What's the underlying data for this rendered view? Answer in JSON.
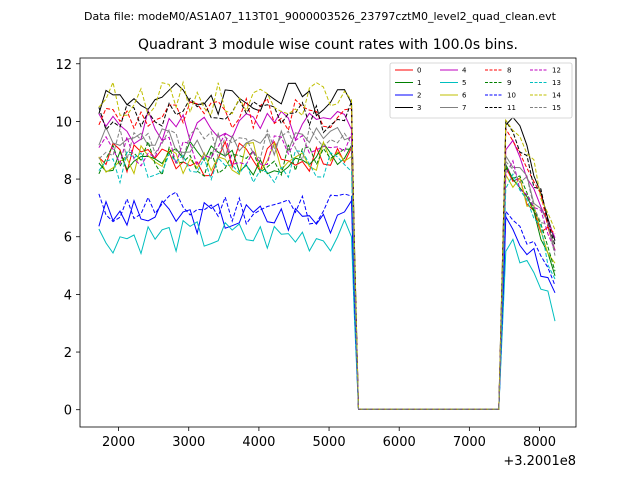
{
  "figure": {
    "suptitle": "Data file: modeM0/AS1A07_113T01_9000003526_23797cztM0_level2_quad_clean.evt"
  },
  "chart_data": {
    "type": "line",
    "title": "Quadrant 3 module wise count rates with 100.0s bins.",
    "xlabel": "",
    "ylabel": "",
    "x_offset_label": "+3.2001e8",
    "xlim": [
      1450,
      8520
    ],
    "ylim": [
      -0.6,
      12.2
    ],
    "xticks": [
      2000,
      3000,
      4000,
      5000,
      6000,
      7000,
      8000
    ],
    "xtick_labels": [
      "2000",
      "3000",
      "4000",
      "5000",
      "6000",
      "7000",
      "8000"
    ],
    "yticks": [
      0,
      2,
      4,
      6,
      8,
      10,
      12
    ],
    "ytick_labels": [
      "0",
      "2",
      "4",
      "6",
      "8",
      "10",
      "12"
    ],
    "legend_position": "top-right",
    "segments": [
      {
        "x_start": 1720,
        "x_end": 5320
      },
      {
        "x_start": 5420,
        "x_end": 7420
      },
      {
        "x_start": 7520,
        "x_end": 8220
      }
    ],
    "series": [
      {
        "name": "0",
        "color": "#ff0000",
        "dash": "solid",
        "level": 8.7,
        "seed": 1,
        "final": 5.5
      },
      {
        "name": "1",
        "color": "#008000",
        "dash": "solid",
        "level": 8.7,
        "seed": 2,
        "final": 5.0
      },
      {
        "name": "2",
        "color": "#0000ff",
        "dash": "solid",
        "level": 6.7,
        "seed": 3,
        "final": 4.0
      },
      {
        "name": "3",
        "color": "#000000",
        "dash": "solid",
        "level": 10.8,
        "seed": 4,
        "final": 6.2
      },
      {
        "name": "4",
        "color": "#bf00bf",
        "dash": "solid",
        "level": 9.8,
        "seed": 5,
        "final": 5.9
      },
      {
        "name": "5",
        "color": "#00bfbf",
        "dash": "solid",
        "level": 6.0,
        "seed": 6,
        "final": 3.4
      },
      {
        "name": "6",
        "color": "#bfbf00",
        "dash": "solid",
        "level": 8.7,
        "seed": 7,
        "final": 5.0
      },
      {
        "name": "7",
        "color": "#808080",
        "dash": "solid",
        "level": 9.3,
        "seed": 8,
        "final": 5.8
      },
      {
        "name": "8",
        "color": "#ff0000",
        "dash": "dashed",
        "level": 10.2,
        "seed": 9,
        "final": 6.0
      },
      {
        "name": "9",
        "color": "#008000",
        "dash": "dashed",
        "level": 8.7,
        "seed": 10,
        "final": 5.1
      },
      {
        "name": "10",
        "color": "#0000ff",
        "dash": "dashed",
        "level": 7.0,
        "seed": 11,
        "final": 4.2
      },
      {
        "name": "11",
        "color": "#000000",
        "dash": "dashed",
        "level": 10.2,
        "seed": 12,
        "final": 6.0
      },
      {
        "name": "12",
        "color": "#bf00bf",
        "dash": "dashed",
        "level": 9.0,
        "seed": 13,
        "final": 5.4
      },
      {
        "name": "13",
        "color": "#00bfbf",
        "dash": "dashed",
        "level": 8.4,
        "seed": 14,
        "final": 4.8
      },
      {
        "name": "14",
        "color": "#bfbf00",
        "dash": "dashed",
        "level": 10.8,
        "seed": 15,
        "final": 6.1
      },
      {
        "name": "15",
        "color": "#808080",
        "dash": "dashed",
        "level": 9.2,
        "seed": 16,
        "final": 5.6
      }
    ]
  }
}
